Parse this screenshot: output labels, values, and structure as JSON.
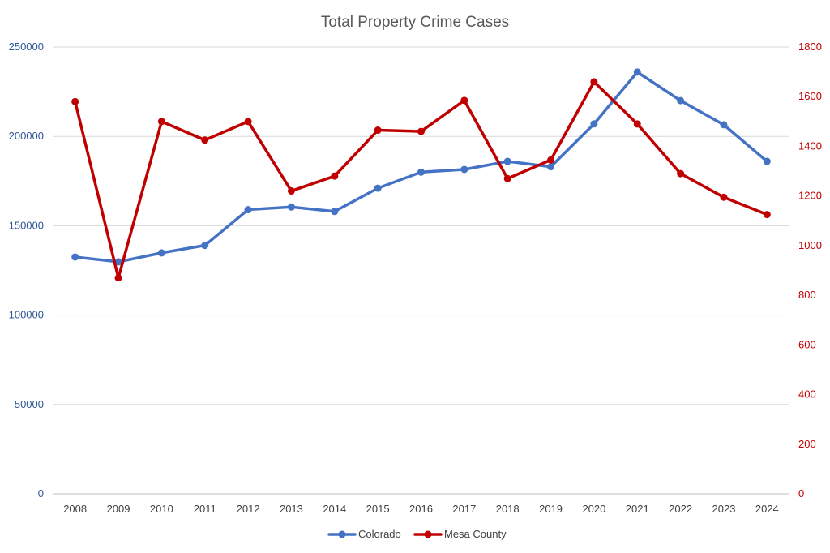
{
  "chart_data": {
    "type": "line",
    "title": "Total Property Crime Cases",
    "xlabel": "",
    "ylabel": "",
    "x": [
      "2008",
      "2009",
      "2010",
      "2011",
      "2012",
      "2013",
      "2014",
      "2015",
      "2016",
      "2017",
      "2018",
      "2019",
      "2020",
      "2021",
      "2022",
      "2023",
      "2024"
    ],
    "y_left": {
      "ylim": [
        0,
        250000
      ],
      "ticks": [
        0,
        50000,
        100000,
        150000,
        200000,
        250000
      ],
      "color": "#2f5597"
    },
    "y_right": {
      "ylim": [
        0,
        1800
      ],
      "ticks": [
        0,
        200,
        400,
        600,
        800,
        1000,
        1200,
        1400,
        1600,
        1800
      ],
      "color": "#c00000"
    },
    "series": [
      {
        "name": "Colorado",
        "axis": "left",
        "color": "#4472c4",
        "values": [
          132500,
          129800,
          134800,
          139000,
          159000,
          160500,
          158000,
          171000,
          180000,
          181500,
          186000,
          183000,
          207000,
          236000,
          220000,
          206500,
          186000
        ]
      },
      {
        "name": "Mesa County",
        "axis": "right",
        "color": "#c00000",
        "values": [
          1580,
          870,
          1500,
          1425,
          1500,
          1220,
          1280,
          1465,
          1460,
          1585,
          1270,
          1345,
          1660,
          1490,
          1290,
          1195,
          1125
        ]
      }
    ],
    "grid": true,
    "legend": "bottom"
  }
}
